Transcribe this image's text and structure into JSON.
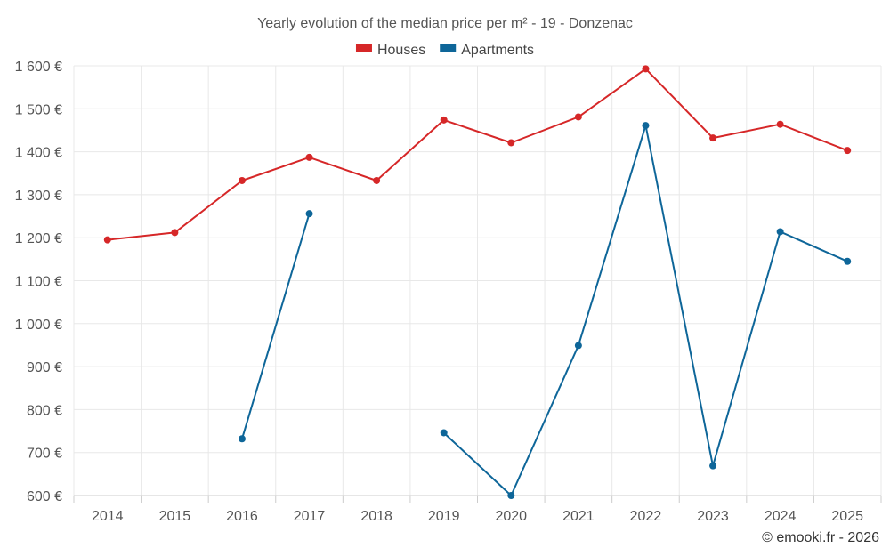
{
  "chart_data": {
    "type": "line",
    "title": "Yearly evolution of the median price per m² - 19 - Donzenac",
    "categories": [
      "2014",
      "2015",
      "2016",
      "2017",
      "2018",
      "2019",
      "2020",
      "2021",
      "2022",
      "2023",
      "2024",
      "2025"
    ],
    "series": [
      {
        "name": "Houses",
        "color": "#d62728",
        "values": [
          1195,
          1212,
          1333,
          1387,
          1333,
          1474,
          1421,
          1481,
          1593,
          1432,
          1464,
          1403
        ]
      },
      {
        "name": "Apartments",
        "color": "#0e6699",
        "values": [
          null,
          null,
          732,
          1256,
          null,
          746,
          600,
          949,
          1461,
          669,
          1214,
          1145
        ]
      }
    ],
    "ylim": [
      600,
      1600
    ],
    "yticks": [
      600,
      700,
      800,
      900,
      1000,
      1100,
      1200,
      1300,
      1400,
      1500,
      1600
    ],
    "ytick_labels": [
      "600 €",
      "700 €",
      "800 €",
      "900 €",
      "1 000 €",
      "1 100 €",
      "1 200 €",
      "1 300 €",
      "1 400 €",
      "1 500 €",
      "1 600 €"
    ],
    "xlabel": "",
    "ylabel": "",
    "grid": true,
    "legend_position": "top-center"
  },
  "credit": "© emooki.fr - 2026"
}
